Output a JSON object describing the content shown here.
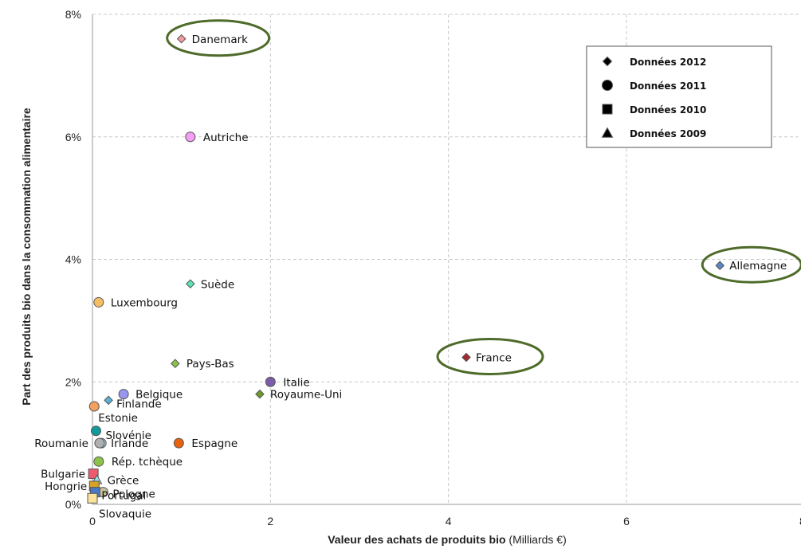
{
  "chart_data": {
    "type": "scatter",
    "xlabel_bold": "Valeur des achats de produits bio",
    "xlabel_unit": " (Milliards €)",
    "ylabel": "Part des produits bio dans la consommation alimentaire",
    "xlim": [
      0,
      8
    ],
    "ylim": [
      0,
      8
    ],
    "x_ticks": [
      {
        "value": 0,
        "label": "0"
      },
      {
        "value": 2,
        "label": "2"
      },
      {
        "value": 4,
        "label": "4"
      },
      {
        "value": 6,
        "label": "6"
      },
      {
        "value": 8,
        "label": "8"
      }
    ],
    "y_ticks": [
      {
        "value": 0,
        "label": "0%"
      },
      {
        "value": 2,
        "label": "2%"
      },
      {
        "value": 4,
        "label": "4%"
      },
      {
        "value": 6,
        "label": "6%"
      },
      {
        "value": 8,
        "label": "8%"
      }
    ],
    "grid": true,
    "legend": {
      "placement": "top-right",
      "entries": [
        {
          "marker": "diamond",
          "label": "Données 2012"
        },
        {
          "marker": "circle",
          "label": "Données 2011"
        },
        {
          "marker": "square",
          "label": "Données 2010"
        },
        {
          "marker": "triangle",
          "label": "Données 2009"
        }
      ]
    },
    "points": [
      {
        "name": "Danemark",
        "x": 1.0,
        "y": 7.6,
        "marker": "diamond",
        "color": "#f49a9a",
        "label_side": "right",
        "highlighted": true
      },
      {
        "name": "Autriche",
        "x": 1.1,
        "y": 6.0,
        "marker": "circle",
        "color": "#f59ef5",
        "label_side": "right",
        "highlighted": false
      },
      {
        "name": "Allemagne",
        "x": 7.05,
        "y": 3.9,
        "marker": "diamond",
        "color": "#5b87c6",
        "label_side": "right",
        "highlighted": true
      },
      {
        "name": "Suède",
        "x": 1.1,
        "y": 3.6,
        "marker": "diamond",
        "color": "#5be3b8",
        "label_side": "right",
        "highlighted": false
      },
      {
        "name": "Luxembourg",
        "x": 0.07,
        "y": 3.3,
        "marker": "circle",
        "color": "#f8be66",
        "label_side": "right",
        "highlighted": false
      },
      {
        "name": "France",
        "x": 4.2,
        "y": 2.4,
        "marker": "diamond",
        "color": "#a22a2a",
        "label_side": "right",
        "highlighted": true
      },
      {
        "name": "Pays-Bas",
        "x": 0.93,
        "y": 2.3,
        "marker": "diamond",
        "color": "#8bc34a",
        "label_side": "right",
        "highlighted": false
      },
      {
        "name": "Italie",
        "x": 2.0,
        "y": 2.0,
        "marker": "circle",
        "color": "#7b5ca8",
        "label_side": "right",
        "highlighted": false
      },
      {
        "name": "Royaume-Uni",
        "x": 1.88,
        "y": 1.8,
        "marker": "diamond",
        "color": "#6b9a2a",
        "label_side": "right",
        "highlighted": false
      },
      {
        "name": "Belgique",
        "x": 0.35,
        "y": 1.8,
        "marker": "circle",
        "color": "#9a96f0",
        "label_side": "right",
        "highlighted": false
      },
      {
        "name": "Finlande",
        "x": 0.18,
        "y": 1.7,
        "marker": "diamond",
        "color": "#5bb2d6",
        "label_side": "right",
        "highlighted": false
      },
      {
        "name": "Estonie",
        "x": 0.02,
        "y": 1.6,
        "marker": "circle",
        "color": "#f3a060",
        "label_side": "below",
        "highlighted": false
      },
      {
        "name": "Slovénie",
        "x": 0.04,
        "y": 1.2,
        "marker": "circle",
        "color": "#129a9a",
        "label_side": "right",
        "highlighted": false
      },
      {
        "name": "Irlande",
        "x": 0.1,
        "y": 1.0,
        "marker": "circle",
        "color": "#9ee0ea",
        "label_side": "right",
        "highlighted": false
      },
      {
        "name": "Roumanie",
        "x": 0.08,
        "y": 1.0,
        "marker": "circle",
        "color": "#b0b0b0",
        "label_side": "left",
        "highlighted": false
      },
      {
        "name": "Espagne",
        "x": 0.97,
        "y": 1.0,
        "marker": "circle",
        "color": "#e8620e",
        "label_side": "right",
        "highlighted": false
      },
      {
        "name": "Rép. tchèque",
        "x": 0.07,
        "y": 0.7,
        "marker": "circle",
        "color": "#8bc34a",
        "label_side": "right",
        "highlighted": false
      },
      {
        "name": "Bulgarie",
        "x": 0.01,
        "y": 0.5,
        "marker": "square",
        "color": "#f05a6e",
        "label_side": "left",
        "highlighted": false
      },
      {
        "name": "Grèce",
        "x": 0.05,
        "y": 0.4,
        "marker": "triangle",
        "color": "#9ee0ea",
        "label_side": "right",
        "highlighted": false
      },
      {
        "name": "Hongrie",
        "x": 0.02,
        "y": 0.3,
        "marker": "square",
        "color": "#d7a126",
        "label_side": "left",
        "highlighted": false
      },
      {
        "name": "Pologne",
        "x": 0.12,
        "y": 0.2,
        "marker": "circle",
        "color": "#c8c29a",
        "label_side": "right",
        "highlighted": false
      },
      {
        "name": "Portugal",
        "x": 0.03,
        "y": 0.2,
        "marker": "square",
        "color": "#4a78c8",
        "label_side": "right",
        "highlighted": false
      },
      {
        "name": "Slovaquie",
        "x": 0.0,
        "y": 0.1,
        "marker": "square",
        "color": "#fce29a",
        "label_side": "below",
        "highlighted": false
      }
    ],
    "highlight_color": "#4e6b2a"
  }
}
